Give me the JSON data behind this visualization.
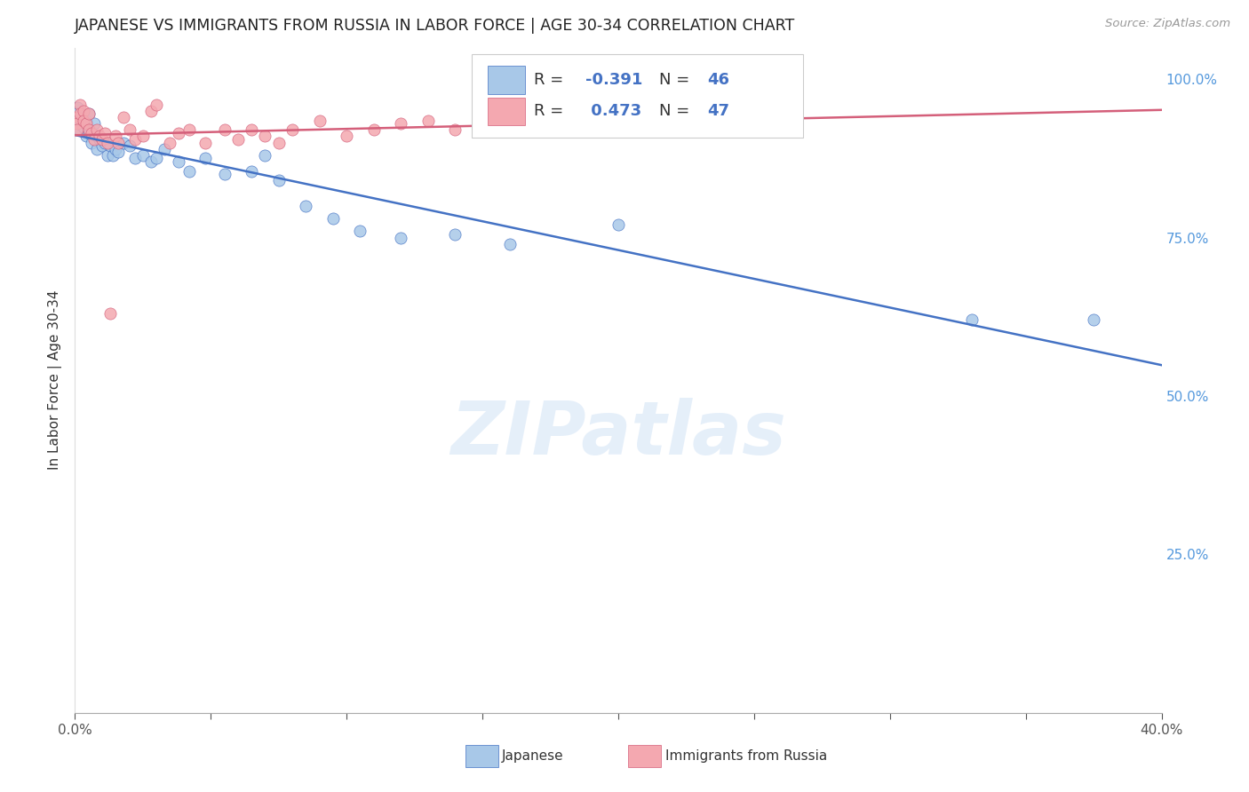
{
  "title": "JAPANESE VS IMMIGRANTS FROM RUSSIA IN LABOR FORCE | AGE 30-34 CORRELATION CHART",
  "source": "Source: ZipAtlas.com",
  "ylabel": "In Labor Force | Age 30-34",
  "xlim": [
    0.0,
    0.4
  ],
  "ylim": [
    0.0,
    1.05
  ],
  "xticks": [
    0.0,
    0.05,
    0.1,
    0.15,
    0.2,
    0.25,
    0.3,
    0.35,
    0.4
  ],
  "xticklabels_show": {
    "0": "0.0%",
    "8": "40.0%"
  },
  "yticks_right": [
    0.25,
    0.5,
    0.75,
    1.0
  ],
  "yticklabels_right": [
    "25.0%",
    "50.0%",
    "75.0%",
    "100.0%"
  ],
  "r_japanese": -0.391,
  "n_japanese": 46,
  "r_russia": 0.473,
  "n_russia": 47,
  "legend_label_japanese": "Japanese",
  "legend_label_russia": "Immigrants from Russia",
  "color_japanese": "#a8c8e8",
  "color_russia": "#f4a8b0",
  "line_color_japanese": "#4472c4",
  "line_color_russia": "#d45f7a",
  "watermark_text": "ZIPatlas",
  "japanese_x": [
    0.001,
    0.001,
    0.002,
    0.002,
    0.002,
    0.003,
    0.003,
    0.004,
    0.004,
    0.005,
    0.005,
    0.006,
    0.007,
    0.008,
    0.008,
    0.009,
    0.01,
    0.011,
    0.012,
    0.013,
    0.014,
    0.015,
    0.016,
    0.018,
    0.02,
    0.022,
    0.025,
    0.028,
    0.03,
    0.033,
    0.038,
    0.042,
    0.048,
    0.055,
    0.065,
    0.07,
    0.075,
    0.085,
    0.095,
    0.105,
    0.12,
    0.14,
    0.16,
    0.2,
    0.33,
    0.375
  ],
  "japanese_y": [
    0.955,
    0.945,
    0.94,
    0.93,
    0.92,
    0.94,
    0.925,
    0.935,
    0.91,
    0.945,
    0.915,
    0.9,
    0.93,
    0.91,
    0.89,
    0.905,
    0.895,
    0.9,
    0.88,
    0.895,
    0.88,
    0.89,
    0.885,
    0.9,
    0.895,
    0.875,
    0.88,
    0.87,
    0.875,
    0.89,
    0.87,
    0.855,
    0.875,
    0.85,
    0.855,
    0.88,
    0.84,
    0.8,
    0.78,
    0.76,
    0.75,
    0.755,
    0.74,
    0.77,
    0.62,
    0.62
  ],
  "russia_x": [
    0.001,
    0.001,
    0.001,
    0.002,
    0.002,
    0.003,
    0.003,
    0.004,
    0.005,
    0.005,
    0.006,
    0.007,
    0.008,
    0.009,
    0.01,
    0.011,
    0.012,
    0.013,
    0.015,
    0.016,
    0.018,
    0.02,
    0.022,
    0.025,
    0.028,
    0.03,
    0.035,
    0.038,
    0.042,
    0.048,
    0.055,
    0.06,
    0.065,
    0.07,
    0.075,
    0.08,
    0.09,
    0.1,
    0.11,
    0.12,
    0.13,
    0.14,
    0.15,
    0.17,
    0.2,
    0.23,
    0.26
  ],
  "russia_y": [
    0.94,
    0.93,
    0.92,
    0.96,
    0.945,
    0.95,
    0.935,
    0.93,
    0.945,
    0.92,
    0.915,
    0.905,
    0.92,
    0.91,
    0.905,
    0.915,
    0.9,
    0.63,
    0.91,
    0.9,
    0.94,
    0.92,
    0.905,
    0.91,
    0.95,
    0.96,
    0.9,
    0.915,
    0.92,
    0.9,
    0.92,
    0.905,
    0.92,
    0.91,
    0.9,
    0.92,
    0.935,
    0.91,
    0.92,
    0.93,
    0.935,
    0.92,
    0.93,
    0.92,
    0.93,
    0.94,
    0.95
  ]
}
